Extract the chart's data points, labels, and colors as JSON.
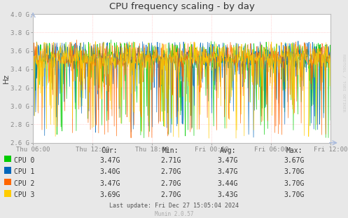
{
  "title": "CPU frequency scaling - by day",
  "ylabel": "Hz",
  "background_color": "#e8e8e8",
  "plot_bg_color": "#ffffff",
  "grid_color": "#ffaaaa",
  "title_color": "#333333",
  "axis_color": "#aaaaaa",
  "watermark": "RRDTOOL / TOBI OETIKER",
  "munin_version": "Munin 2.0.57",
  "last_update": "Last update: Fri Dec 27 15:05:04 2024",
  "ylim": [
    2600000000.0,
    4000000000.0
  ],
  "yticks": [
    2600000000.0,
    2800000000.0,
    3000000000.0,
    3200000000.0,
    3400000000.0,
    3600000000.0,
    3800000000.0,
    4000000000.0
  ],
  "ytick_labels": [
    "2.6 G",
    "2.8 G",
    "3.0 G",
    "3.2 G",
    "3.4 G",
    "3.6 G",
    "3.8 G",
    "4.0 G"
  ],
  "xtick_labels": [
    "Thu 06:00",
    "Thu 12:00",
    "Thu 18:00",
    "Fri 00:00",
    "Fri 06:00",
    "Fri 12:00"
  ],
  "cpu_colors": [
    "#00cc00",
    "#0066bb",
    "#ff6600",
    "#ffcc00"
  ],
  "cpu_names": [
    "CPU 0",
    "CPU 1",
    "CPU 2",
    "CPU 3"
  ],
  "legend_headers": [
    "Cur:",
    "Min:",
    "Avg:",
    "Max:"
  ],
  "legend_data": [
    [
      "3.47G",
      "2.71G",
      "3.47G",
      "3.67G"
    ],
    [
      "3.40G",
      "2.70G",
      "3.47G",
      "3.70G"
    ],
    [
      "3.47G",
      "2.70G",
      "3.44G",
      "3.70G"
    ],
    [
      "3.69G",
      "2.70G",
      "3.43G",
      "3.70G"
    ]
  ],
  "n_points": 800,
  "base_freq": 3520000000.0,
  "spike_min": 2650000000.0,
  "seed": 42
}
